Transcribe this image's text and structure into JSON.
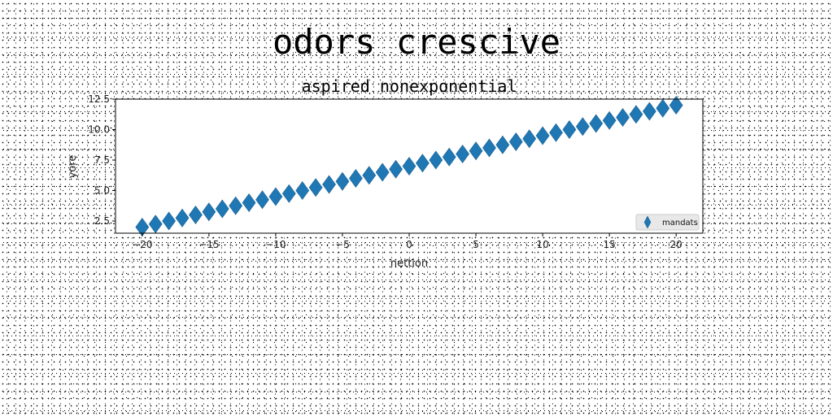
{
  "suptitle": "odors crescive",
  "chart_data": {
    "type": "scatter",
    "title": "aspired nonexponential",
    "xlabel": "nettion",
    "ylabel": "yore",
    "xlim": [
      -22,
      22
    ],
    "ylim": [
      1.5,
      12.5
    ],
    "xticks": [
      -20,
      -15,
      -10,
      -5,
      0,
      5,
      10,
      15,
      20
    ],
    "xtick_labels": [
      "−20",
      "−15",
      "−10",
      "−5",
      "0",
      "5",
      "10",
      "15",
      "20"
    ],
    "yticks": [
      2.5,
      5.0,
      7.5,
      10.0,
      12.5
    ],
    "ytick_labels": [
      "2.5",
      "5.0",
      "7.5",
      "10.0",
      "12.5"
    ],
    "grid": false,
    "legend_position": "lower-right",
    "series": [
      {
        "name": "mandats",
        "marker": "diamond",
        "color": "#1f77b4",
        "x": [
          -20,
          -19,
          -18,
          -17,
          -16,
          -15,
          -14,
          -13,
          -12,
          -11,
          -10,
          -9,
          -8,
          -7,
          -6,
          -5,
          -4,
          -3,
          -2,
          -1,
          0,
          1,
          2,
          3,
          4,
          5,
          6,
          7,
          8,
          9,
          10,
          11,
          12,
          13,
          14,
          15,
          16,
          17,
          18,
          19,
          20
        ],
        "y": [
          2.0,
          2.25,
          2.5,
          2.75,
          3.0,
          3.25,
          3.5,
          3.75,
          4.0,
          4.25,
          4.5,
          4.75,
          5.0,
          5.25,
          5.5,
          5.75,
          6.0,
          6.25,
          6.5,
          6.75,
          7.0,
          7.25,
          7.5,
          7.75,
          8.0,
          8.25,
          8.5,
          8.75,
          9.0,
          9.25,
          9.5,
          9.75,
          10.0,
          10.25,
          10.5,
          10.75,
          11.0,
          11.25,
          11.5,
          11.75,
          12.0
        ]
      }
    ]
  }
}
